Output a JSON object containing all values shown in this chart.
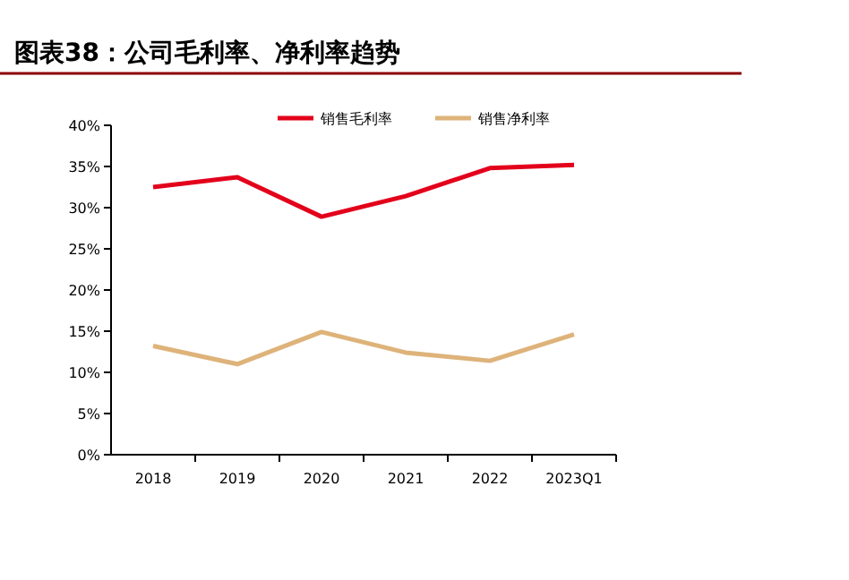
{
  "chart_data": {
    "type": "line",
    "title": "图表38：公司毛利率、净利率趋势",
    "categories": [
      "2018",
      "2019",
      "2020",
      "2021",
      "2022",
      "2023Q1"
    ],
    "series": [
      {
        "name": "销售毛利率",
        "color": "#e3001b",
        "values": [
          32.5,
          33.7,
          28.9,
          31.4,
          34.8,
          35.2
        ]
      },
      {
        "name": "销售净利率",
        "color": "#deb37a",
        "values": [
          13.2,
          11.0,
          14.9,
          12.4,
          11.4,
          14.6
        ]
      }
    ],
    "ylim": [
      0,
      40
    ],
    "yticks": [
      {
        "value": 0,
        "label": "0%"
      },
      {
        "value": 5,
        "label": "5%"
      },
      {
        "value": 10,
        "label": "10%"
      },
      {
        "value": 15,
        "label": "15%"
      },
      {
        "value": 20,
        "label": "20%"
      },
      {
        "value": 25,
        "label": "25%"
      },
      {
        "value": 30,
        "label": "30%"
      },
      {
        "value": 35,
        "label": "35%"
      },
      {
        "value": 40,
        "label": "40%"
      }
    ],
    "grid": false,
    "legend": "top",
    "marker": "none",
    "line_style": "solid"
  }
}
